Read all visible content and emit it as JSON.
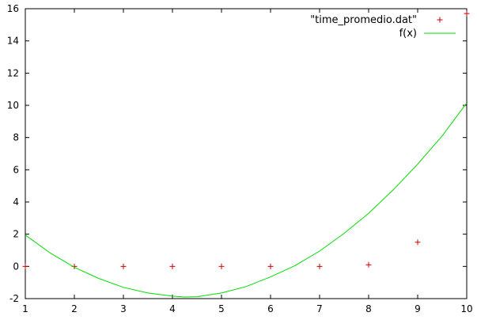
{
  "chart_data": {
    "type": "scatter",
    "xlim": [
      1,
      10
    ],
    "ylim": [
      -2,
      16
    ],
    "x_ticks": [
      1,
      2,
      3,
      4,
      5,
      6,
      7,
      8,
      9,
      10
    ],
    "y_ticks": [
      -2,
      0,
      2,
      4,
      6,
      8,
      10,
      12,
      14,
      16
    ],
    "x_tick_labels": [
      "1",
      "2",
      "3",
      "4",
      "5",
      "6",
      "7",
      "8",
      "9",
      "10"
    ],
    "y_tick_labels": [
      "-2",
      "0",
      "2",
      "4",
      "6",
      "8",
      "10",
      "12",
      "14",
      "16"
    ],
    "grid": false,
    "legend_position": "top-right",
    "series": [
      {
        "name": "\"time_promedio.dat\"",
        "kind": "points",
        "marker": "plus",
        "color": "#cc0000",
        "x": [
          1,
          2,
          3,
          4,
          5,
          6,
          7,
          8,
          9,
          10
        ],
        "y": [
          0,
          0,
          0,
          0,
          0,
          0,
          0,
          0.1,
          1.5,
          15.7
        ]
      },
      {
        "name": "f(x)",
        "kind": "line",
        "color": "#00dd00",
        "x": [
          1,
          1.5,
          2,
          2.5,
          3,
          3.5,
          4,
          4.25,
          4.5,
          5,
          5.5,
          6,
          6.5,
          7,
          7.5,
          8,
          8.5,
          9,
          9.5,
          10
        ],
        "y": [
          1.95,
          0.85,
          -0.05,
          -0.75,
          -1.3,
          -1.65,
          -1.85,
          -1.9,
          -1.88,
          -1.65,
          -1.25,
          -0.65,
          0.05,
          0.95,
          2.05,
          3.3,
          4.75,
          6.35,
          8.1,
          10.15
        ]
      }
    ]
  }
}
